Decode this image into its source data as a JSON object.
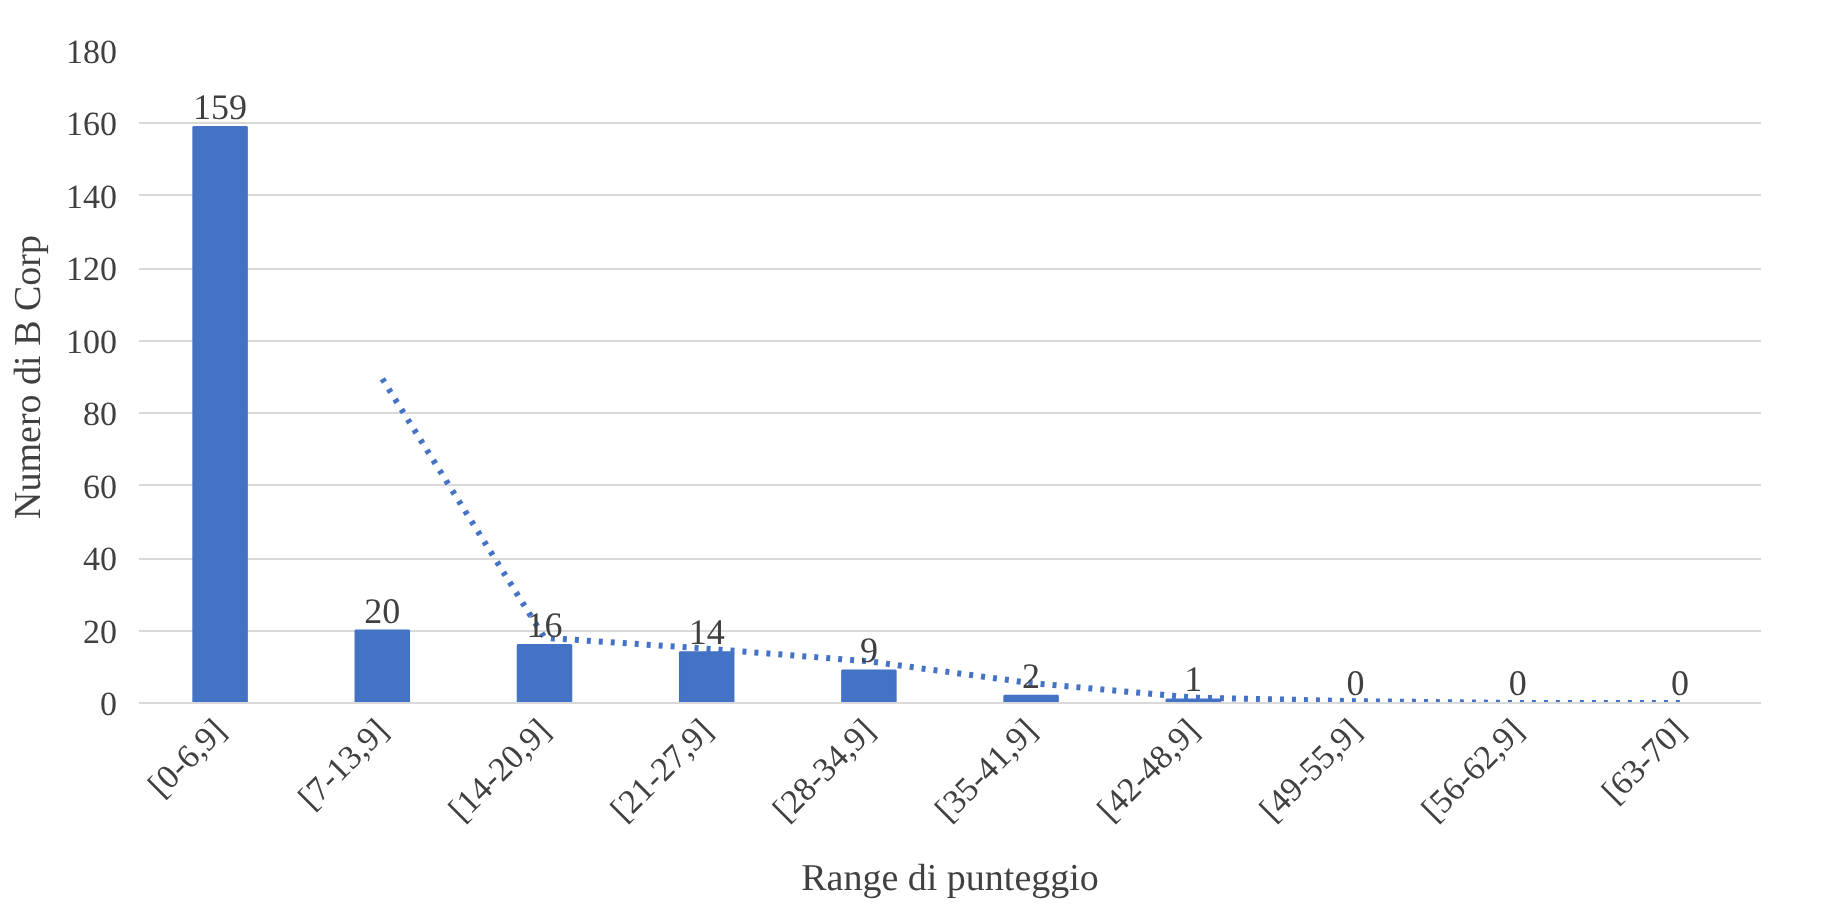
{
  "chart_data": {
    "type": "bar",
    "xlabel": "Range di punteggio",
    "ylabel": "Numero di B Corp",
    "categories": [
      "[0-6,9]",
      "[7-13,9]",
      "[14-20,9]",
      "[21-27,9]",
      "[28-34,9]",
      "[35-41,9]",
      "[42-48,9]",
      "[49-55,9]",
      "[56-62,9]",
      "[63-70]"
    ],
    "series": [
      {
        "color": "#4472c4",
        "values": [
          159,
          20,
          16,
          14,
          9,
          2,
          1,
          0,
          0,
          0
        ],
        "value_labels": [
          "159",
          "20",
          "16",
          "14",
          "9",
          "2",
          "1",
          "0",
          "0",
          "0"
        ]
      },
      {
        "type": "line",
        "color": "#4472c4",
        "line_style": "dotted",
        "x": [
          "[7-13,9]",
          "[14-20,9]",
          "[21-27,9]",
          "[28-34,9]",
          "[35-41,9]",
          "[42-48,9]",
          "[49-55,9]",
          "[56-62,9]",
          "[63-70]"
        ],
        "values": [
          89.5,
          18,
          15,
          11.5,
          5.5,
          1.5,
          0.5,
          0,
          0
        ]
      }
    ],
    "ylim": [
      0,
      180
    ],
    "yticks": [
      0,
      20,
      40,
      60,
      80,
      100,
      120,
      140,
      160,
      180
    ],
    "grid": "y"
  }
}
